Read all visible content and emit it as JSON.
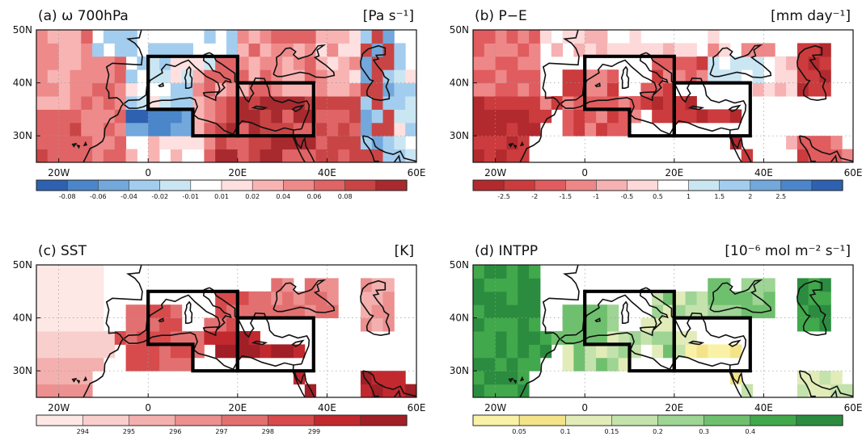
{
  "map_extent": {
    "lon": [
      -25,
      60
    ],
    "lat": [
      25,
      50
    ]
  },
  "lon_ticks": [
    "20W",
    "0",
    "20E",
    "40E",
    "60E"
  ],
  "lat_ticks": [
    "50N",
    "40N",
    "30N"
  ],
  "panels": [
    {
      "id": "a",
      "title": "(a) ω 700hPa",
      "units": "[Pa s⁻¹]",
      "colorbar": {
        "colors": [
          "#2e61b0",
          "#4a86c9",
          "#72a8dc",
          "#a3cdee",
          "#cbe6f3",
          "#ffffff",
          "#fde0df",
          "#f8b4b3",
          "#ef8a8b",
          "#e06465",
          "#c94545",
          "#a82a2f"
        ],
        "labels": [
          "-0.08",
          "-0.06",
          "-0.04",
          "-0.02",
          "-0.01",
          "0.01",
          "0.02",
          "0.04",
          "0.06",
          "0.08"
        ]
      }
    },
    {
      "id": "b",
      "title": "(b) P−E",
      "units": "[mm day⁻¹]",
      "colorbar": {
        "colors": [
          "#b22a2e",
          "#cc3b3d",
          "#e05c5e",
          "#ee8788",
          "#f6b1b2",
          "#fdd9d9",
          "#ffffff",
          "#cbe6f3",
          "#a3cdee",
          "#72a8dc",
          "#4a86c9",
          "#2e61b0"
        ],
        "labels": [
          "-2.5",
          "-2",
          "-1.5",
          "-1",
          "-0.5",
          "0.5",
          "1",
          "1.5",
          "2",
          "2.5"
        ]
      }
    },
    {
      "id": "c",
      "title": "(c) SST",
      "units": "[K]",
      "colorbar": {
        "colors": [
          "#fde8e6",
          "#f9cfcd",
          "#f3b0ae",
          "#ec9090",
          "#e37070",
          "#d74b4d",
          "#c2292f",
          "#a11f26"
        ],
        "labels": [
          "294",
          "295",
          "296",
          "297",
          "298",
          "299"
        ]
      }
    },
    {
      "id": "d",
      "title": "(d) INTPP",
      "units": "[10⁻⁶ mol m⁻² s⁻¹]",
      "colorbar": {
        "colors": [
          "#f9f2a6",
          "#f3e48a",
          "#e2ecb9",
          "#c4e2ac",
          "#9ed494",
          "#6fc06e",
          "#41a84c",
          "#2b8c3f"
        ],
        "labels": [
          "0.05",
          "0.1",
          "0.15",
          "0.2",
          "0.3",
          "0.4"
        ]
      }
    }
  ]
}
